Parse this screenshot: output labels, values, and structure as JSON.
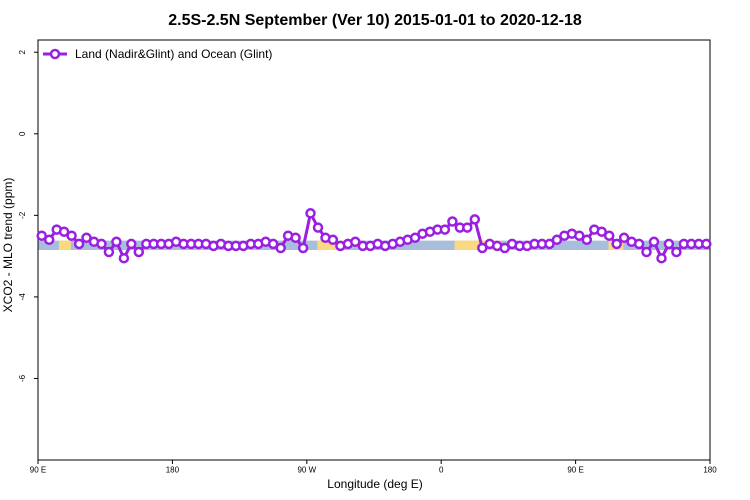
{
  "chart_data": {
    "type": "line",
    "title": "2.5S-2.5N September (Ver 10)   2015-01-01 to 2020-12-18",
    "xlabel": "Longitude (deg E)",
    "ylabel": "XCO2 - MLO trend (ppm)",
    "xlim": [
      90,
      540
    ],
    "ylim": [
      -8,
      2.3
    ],
    "x_ticks": [
      {
        "value": 90,
        "label": "90 E"
      },
      {
        "value": 180,
        "label": "180"
      },
      {
        "value": 270,
        "label": "90 W"
      },
      {
        "value": 360,
        "label": "0"
      },
      {
        "value": 450,
        "label": "90 E"
      },
      {
        "value": 540,
        "label": "180"
      }
    ],
    "y_ticks": [
      {
        "value": 2,
        "label": "2"
      },
      {
        "value": 0,
        "label": "0"
      },
      {
        "value": -2,
        "label": "-2"
      },
      {
        "value": -4,
        "label": "-4"
      },
      {
        "value": -6,
        "label": "-6"
      }
    ],
    "legend": {
      "position": "top-left"
    },
    "series": [
      {
        "name": "Land (Nadir&Glint) and Ocean (Glint)",
        "color": "#9a1fe0",
        "x": [
          92.5,
          97.5,
          102.5,
          107.5,
          112.5,
          117.5,
          122.5,
          127.5,
          132.5,
          137.5,
          142.5,
          147.5,
          152.5,
          157.5,
          162.5,
          167.5,
          172.5,
          177.5,
          182.5,
          187.5,
          192.5,
          197.5,
          202.5,
          207.5,
          212.5,
          217.5,
          222.5,
          227.5,
          232.5,
          237.5,
          242.5,
          247.5,
          252.5,
          257.5,
          262.5,
          267.5,
          272.5,
          277.5,
          282.5,
          287.5,
          292.5,
          297.5,
          302.5,
          307.5,
          312.5,
          317.5,
          322.5,
          327.5,
          332.5,
          337.5,
          342.5,
          347.5,
          352.5,
          357.5,
          362.5,
          367.5,
          372.5,
          377.5,
          382.5,
          387.5,
          392.5,
          397.5,
          402.5,
          407.5,
          412.5,
          417.5,
          422.5,
          427.5,
          432.5,
          437.5,
          442.5,
          447.5,
          452.5,
          457.5,
          462.5,
          467.5,
          472.5,
          477.5,
          482.5,
          487.5,
          492.5,
          497.5,
          502.5,
          507.5,
          512.5,
          517.5,
          522.5,
          527.5,
          532.5,
          537.5
        ],
        "y": [
          -2.5,
          -2.6,
          -2.35,
          -2.4,
          -2.5,
          -2.7,
          -2.55,
          -2.65,
          -2.7,
          -2.9,
          -2.65,
          -3.05,
          -2.7,
          -2.9,
          -2.7,
          -2.7,
          -2.7,
          -2.7,
          -2.65,
          -2.7,
          -2.7,
          -2.7,
          -2.7,
          -2.75,
          -2.7,
          -2.75,
          -2.75,
          -2.75,
          -2.7,
          -2.7,
          -2.65,
          -2.7,
          -2.8,
          -2.5,
          -2.55,
          -2.8,
          -1.95,
          -2.3,
          -2.55,
          -2.6,
          -2.75,
          -2.7,
          -2.65,
          -2.75,
          -2.75,
          -2.7,
          -2.75,
          -2.7,
          -2.65,
          -2.6,
          -2.55,
          -2.45,
          -2.4,
          -2.35,
          -2.35,
          -2.15,
          -2.3,
          -2.3,
          -2.1,
          -2.8,
          -2.7,
          -2.75,
          -2.8,
          -2.7,
          -2.75,
          -2.75,
          -2.7,
          -2.7,
          -2.7,
          -2.6,
          -2.5,
          -2.45,
          -2.5,
          -2.6,
          -2.35,
          -2.4,
          -2.5,
          -2.7,
          -2.55,
          -2.65,
          -2.7,
          -2.9,
          -2.65,
          -3.05,
          -2.7,
          -2.9,
          -2.7,
          -2.7,
          -2.7,
          -2.7
        ]
      }
    ],
    "surface_band": {
      "y_range": [
        -2.85,
        -2.62
      ],
      "ocean_color": "#a8bedc",
      "land_color": "#fbd97e",
      "land_x_ranges": [
        [
          104,
          112
        ],
        [
          277,
          295
        ],
        [
          369,
          386
        ],
        [
          387,
          400
        ],
        [
          472,
          482
        ]
      ]
    }
  }
}
